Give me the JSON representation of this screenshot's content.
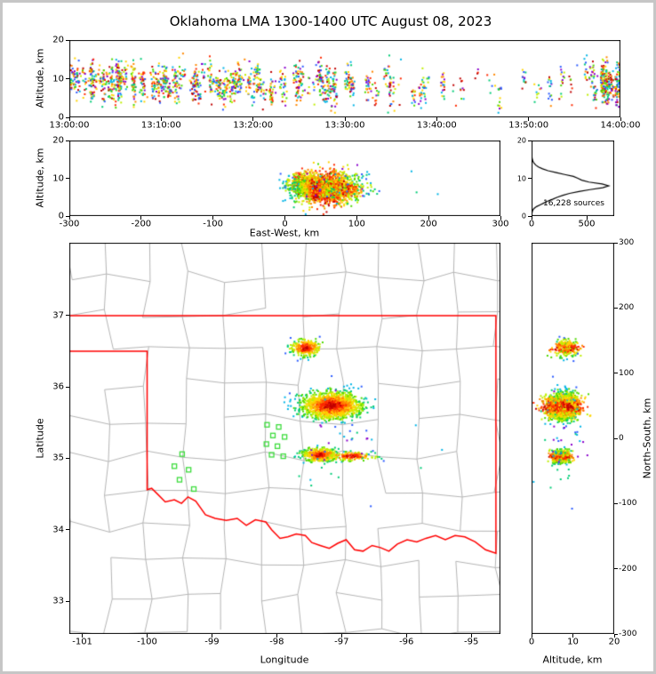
{
  "title": "Oklahoma LMA 1300-1400 UTC August 08, 2023",
  "annotation": {
    "sources_label": "16,228 sources"
  },
  "axis_labels": {
    "time_height_y": "Altitude, km",
    "ew_height_y": "Altitude, km",
    "ew_height_x": "East-West, km",
    "map_x": "Longitude",
    "map_y": "Latitude",
    "ns_height_x": "Altitude, km",
    "ns_height_y": "North-South, km"
  },
  "axes": {
    "time_height": {
      "xlim": [
        0,
        3600
      ],
      "ylim": [
        0,
        20
      ],
      "xtick_vals": [
        0,
        600,
        1200,
        1800,
        2400,
        3000,
        3600
      ],
      "xtick_labels": [
        "13:00:00",
        "13:10:00",
        "13:20:00",
        "13:30:00",
        "13:40:00",
        "13:50:00",
        "14:00:00"
      ],
      "ytick_vals": [
        0,
        10,
        20
      ]
    },
    "ew_height": {
      "xlim": [
        -300,
        300
      ],
      "ylim": [
        0,
        20
      ],
      "xtick_vals": [
        -300,
        -200,
        -100,
        0,
        100,
        200,
        300
      ],
      "ytick_vals": [
        0,
        10,
        20
      ]
    },
    "histogram": {
      "xlim": [
        0,
        750
      ],
      "ylim": [
        0,
        20
      ],
      "xtick_vals": [
        0,
        500
      ],
      "ytick_vals": [
        0,
        10,
        20
      ]
    },
    "map": {
      "xlim": [
        -101.2,
        -94.55
      ],
      "ylim": [
        32.54,
        38.02
      ],
      "xtick_vals": [
        -101,
        -100,
        -99,
        -98,
        -97,
        -96,
        -95
      ],
      "ytick_vals": [
        33,
        34,
        35,
        36,
        37
      ]
    },
    "ns_height": {
      "xlim": [
        0,
        20
      ],
      "ylim": [
        -300,
        300
      ],
      "xtick_vals": [
        0,
        10,
        20
      ],
      "ytick_vals": [
        -300,
        -200,
        -100,
        0,
        100,
        200,
        300
      ]
    }
  },
  "colors": {
    "state_border": "#ff0000",
    "county_line": "#b4b4b4",
    "station": "#3ddc3d",
    "histogram_line": "#000000",
    "palette": [
      "#c00000",
      "#ff2a00",
      "#ff8800",
      "#ffd400",
      "#bfee00",
      "#4fd900",
      "#00cc77",
      "#00b4e6",
      "#2b5bff",
      "#8a00cc"
    ]
  },
  "chart_data": {
    "type": "scatter",
    "description": "VHF lightning source density from the Oklahoma LMA, 1300-1400 UTC 08 Aug 2023: time-height panel, east-west/height panel, altitude histogram (16,228 sources), plan-view map over Oklahoma with county and state borders and LMA station squares, and north-south/height panel.",
    "projection": {
      "ref_lon": -97.8,
      "ref_lat": 35.3,
      "km_per_deg_lon": 90.6,
      "km_per_deg_lat": 111
    },
    "storms": [
      {
        "name": "north-storm",
        "lon": -97.55,
        "lat": 36.55,
        "sigma_lon": 0.11,
        "sigma_lat": 0.055,
        "alt_km": 8.5,
        "sigma_alt": 1.6,
        "count": 280
      },
      {
        "name": "central-storm",
        "lon": -97.15,
        "lat": 35.74,
        "sigma_lon": 0.22,
        "sigma_lat": 0.09,
        "alt_km": 7.5,
        "sigma_alt": 2.1,
        "count": 1500
      },
      {
        "name": "south-storm",
        "lon": -97.33,
        "lat": 35.05,
        "sigma_lon": 0.13,
        "sigma_lat": 0.045,
        "alt_km": 7.0,
        "sigma_alt": 1.2,
        "count": 450
      },
      {
        "name": "south-storm-tail",
        "lon": -96.85,
        "lat": 35.03,
        "sigma_lon": 0.18,
        "sigma_lat": 0.03,
        "alt_km": 7.0,
        "sigma_alt": 0.9,
        "count": 150
      },
      {
        "name": "scattered-sources",
        "lon": -96.9,
        "lat": 35.2,
        "sigma_lon": 0.55,
        "sigma_lat": 0.38,
        "alt_km": 8.0,
        "sigma_alt": 2.5,
        "count": 40,
        "cool": true
      }
    ],
    "stations": [
      [
        -98.15,
        35.47
      ],
      [
        -97.97,
        35.44
      ],
      [
        -98.06,
        35.32
      ],
      [
        -97.88,
        35.3
      ],
      [
        -98.16,
        35.2
      ],
      [
        -97.99,
        35.17
      ],
      [
        -98.08,
        35.05
      ],
      [
        -97.9,
        35.03
      ],
      [
        -99.46,
        35.06
      ],
      [
        -99.58,
        34.89
      ],
      [
        -99.36,
        34.84
      ],
      [
        -99.5,
        34.7
      ],
      [
        -99.28,
        34.57
      ]
    ],
    "state_border": [
      [
        -101.2,
        36.5
      ],
      [
        -100.0,
        36.5
      ],
      [
        -100.0,
        34.56
      ],
      [
        -99.93,
        34.58
      ],
      [
        -99.84,
        34.5
      ],
      [
        -99.72,
        34.39
      ],
      [
        -99.58,
        34.42
      ],
      [
        -99.47,
        34.37
      ],
      [
        -99.37,
        34.46
      ],
      [
        -99.25,
        34.4
      ],
      [
        -99.1,
        34.21
      ],
      [
        -98.95,
        34.16
      ],
      [
        -98.78,
        34.13
      ],
      [
        -98.61,
        34.16
      ],
      [
        -98.47,
        34.06
      ],
      [
        -98.33,
        34.14
      ],
      [
        -98.17,
        34.11
      ],
      [
        -98.08,
        34.0
      ],
      [
        -97.95,
        33.88
      ],
      [
        -97.83,
        33.9
      ],
      [
        -97.7,
        33.94
      ],
      [
        -97.56,
        33.92
      ],
      [
        -97.46,
        33.82
      ],
      [
        -97.33,
        33.78
      ],
      [
        -97.19,
        33.74
      ],
      [
        -97.06,
        33.81
      ],
      [
        -96.93,
        33.86
      ],
      [
        -96.8,
        33.72
      ],
      [
        -96.67,
        33.7
      ],
      [
        -96.53,
        33.78
      ],
      [
        -96.4,
        33.75
      ],
      [
        -96.27,
        33.7
      ],
      [
        -96.14,
        33.8
      ],
      [
        -95.99,
        33.86
      ],
      [
        -95.84,
        33.83
      ],
      [
        -95.7,
        33.88
      ],
      [
        -95.55,
        33.92
      ],
      [
        -95.4,
        33.86
      ],
      [
        -95.25,
        33.92
      ],
      [
        -95.1,
        33.9
      ],
      [
        -94.94,
        33.83
      ],
      [
        -94.78,
        33.72
      ],
      [
        -94.62,
        33.67
      ],
      [
        -94.62,
        37.0
      ],
      [
        -101.2,
        37.0
      ]
    ],
    "time_activity": [
      {
        "t0": 0,
        "t1": 300,
        "n": 240
      },
      {
        "t0": 300,
        "t1": 600,
        "n": 230
      },
      {
        "t0": 600,
        "t1": 900,
        "n": 210
      },
      {
        "t0": 900,
        "t1": 1200,
        "n": 220
      },
      {
        "t0": 1200,
        "t1": 1500,
        "n": 160
      },
      {
        "t0": 1500,
        "t1": 1800,
        "n": 170
      },
      {
        "t0": 1800,
        "t1": 2100,
        "n": 130
      },
      {
        "t0": 2100,
        "t1": 2400,
        "n": 60
      },
      {
        "t0": 2400,
        "t1": 2700,
        "n": 35
      },
      {
        "t0": 2700,
        "t1": 3000,
        "n": 30
      },
      {
        "t0": 3000,
        "t1": 3300,
        "n": 45
      },
      {
        "t0": 3300,
        "t1": 3480,
        "n": 50
      },
      {
        "t0": 3480,
        "t1": 3600,
        "n": 230
      }
    ],
    "histogram_alt_step_km": 0.5,
    "histogram_counts": [
      0,
      2,
      5,
      10,
      22,
      45,
      80,
      115,
      150,
      195,
      235,
      285,
      345,
      430,
      530,
      645,
      700,
      640,
      520,
      455,
      420,
      380,
      300,
      225,
      150,
      100,
      62,
      38,
      22,
      12,
      7,
      4,
      2,
      1,
      0,
      0,
      0,
      0,
      0,
      0,
      0
    ]
  }
}
